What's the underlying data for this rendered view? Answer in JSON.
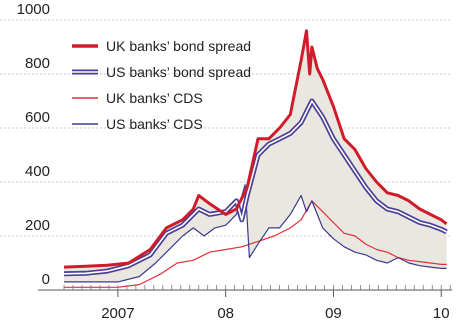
{
  "chart_data": {
    "type": "line",
    "title": "",
    "xlabel": "",
    "ylabel": "",
    "ylim": [
      0,
      1000
    ],
    "yticks": [
      0,
      200,
      400,
      600,
      800,
      1000
    ],
    "ytick_labels": [
      "0",
      "200",
      "400",
      "600",
      "800",
      "1000"
    ],
    "xlim": [
      2006.5,
      2010.1
    ],
    "xticks": [
      {
        "value": 2007.0,
        "label": "2007"
      },
      {
        "value": 2008.0,
        "label": "08"
      },
      {
        "value": 2009.0,
        "label": "09"
      },
      {
        "value": 2010.0,
        "label": "10"
      }
    ],
    "grid": "horizontal",
    "legend_position": "top-left",
    "spread_fill_color": "#e9e7df",
    "series": [
      {
        "name": "UK banks’ bond spread",
        "color": "#d01c2a",
        "style": "thick",
        "x": [
          2006.5,
          2006.7,
          2006.9,
          2007.1,
          2007.3,
          2007.45,
          2007.6,
          2007.7,
          2007.75,
          2007.85,
          2008.0,
          2008.1,
          2008.2,
          2008.3,
          2008.4,
          2008.5,
          2008.6,
          2008.7,
          2008.75,
          2008.78,
          2008.8,
          2008.85,
          2008.9,
          2009.0,
          2009.1,
          2009.2,
          2009.3,
          2009.4,
          2009.5,
          2009.6,
          2009.7,
          2009.8,
          2009.9,
          2010.0,
          2010.05
        ],
        "y": [
          85,
          88,
          92,
          100,
          150,
          230,
          260,
          300,
          350,
          320,
          280,
          300,
          380,
          560,
          560,
          600,
          650,
          850,
          960,
          800,
          900,
          820,
          780,
          680,
          560,
          520,
          450,
          400,
          360,
          350,
          330,
          300,
          280,
          260,
          245
        ]
      },
      {
        "name": "US banks’ bond spread",
        "color": "#4b3f96",
        "style": "double",
        "x": [
          2006.5,
          2006.7,
          2006.9,
          2007.1,
          2007.3,
          2007.45,
          2007.6,
          2007.7,
          2007.75,
          2007.85,
          2008.0,
          2008.1,
          2008.15,
          2008.2,
          2008.3,
          2008.4,
          2008.5,
          2008.6,
          2008.7,
          2008.8,
          2008.9,
          2009.0,
          2009.1,
          2009.2,
          2009.3,
          2009.4,
          2009.5,
          2009.6,
          2009.7,
          2009.8,
          2009.9,
          2010.0,
          2010.05
        ],
        "y": [
          60,
          62,
          70,
          90,
          130,
          210,
          240,
          280,
          300,
          280,
          290,
          330,
          260,
          350,
          500,
          540,
          560,
          580,
          620,
          700,
          640,
          560,
          500,
          440,
          380,
          330,
          300,
          290,
          270,
          250,
          240,
          225,
          215
        ]
      },
      {
        "name": "UK banks’ CDS",
        "color": "#e0303c",
        "style": "thin",
        "x": [
          2006.5,
          2006.7,
          2006.9,
          2007.0,
          2007.2,
          2007.4,
          2007.55,
          2007.7,
          2007.85,
          2008.0,
          2008.15,
          2008.3,
          2008.45,
          2008.6,
          2008.7,
          2008.8,
          2008.9,
          2009.0,
          2009.1,
          2009.2,
          2009.3,
          2009.4,
          2009.5,
          2009.6,
          2009.7,
          2009.8,
          2009.9,
          2010.0,
          2010.05
        ],
        "y": [
          10,
          10,
          10,
          10,
          20,
          60,
          100,
          110,
          140,
          150,
          160,
          180,
          200,
          230,
          260,
          330,
          290,
          250,
          210,
          200,
          170,
          150,
          140,
          120,
          110,
          105,
          100,
          95,
          95
        ]
      },
      {
        "name": "US banks’ CDS",
        "color": "#3c3a8e",
        "style": "thin",
        "x": [
          2006.5,
          2006.7,
          2006.9,
          2007.0,
          2007.2,
          2007.35,
          2007.5,
          2007.6,
          2007.7,
          2007.8,
          2007.9,
          2008.0,
          2008.1,
          2008.18,
          2008.22,
          2008.3,
          2008.4,
          2008.5,
          2008.6,
          2008.7,
          2008.75,
          2008.8,
          2008.9,
          2009.0,
          2009.1,
          2009.2,
          2009.3,
          2009.4,
          2009.5,
          2009.6,
          2009.7,
          2009.8,
          2009.9,
          2010.0,
          2010.05
        ],
        "y": [
          30,
          30,
          30,
          30,
          50,
          100,
          160,
          200,
          230,
          200,
          230,
          240,
          280,
          390,
          120,
          170,
          230,
          230,
          280,
          350,
          290,
          330,
          230,
          190,
          160,
          140,
          130,
          110,
          100,
          120,
          100,
          90,
          85,
          80,
          80
        ]
      }
    ]
  }
}
